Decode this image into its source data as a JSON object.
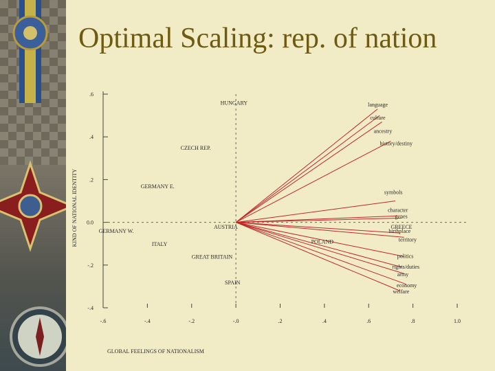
{
  "slide": {
    "title": "Optimal Scaling: rep. of nation"
  },
  "decor": {
    "left_strip": [
      "medal-ribbon-icon",
      "cross-medal-icon",
      "compass-icon"
    ]
  },
  "chart_data": {
    "type": "scatter",
    "title": "",
    "xlabel": "GLOBAL FEELINGS OF NATIONALISM",
    "ylabel": "KIND OF NATIONAL IDENTITY",
    "xlim": [
      -0.6,
      1.0
    ],
    "ylim": [
      -0.4,
      0.6
    ],
    "x_ticks": [
      -0.6,
      -0.4,
      -0.2,
      0.0,
      0.2,
      0.4,
      0.6,
      0.8,
      1.0
    ],
    "x_tick_labels": [
      "-.6",
      "-.4",
      "-.2",
      "-.0",
      ".2",
      ".4",
      ".6",
      ".8",
      "1.0"
    ],
    "y_ticks": [
      -0.4,
      -0.2,
      0.0,
      0.2,
      0.4,
      0.6
    ],
    "y_tick_labels": [
      "-.4",
      "-.2",
      "0.0",
      ".2",
      ".4",
      ".6"
    ],
    "reference_lines": {
      "x": 0.0,
      "y": 0.0,
      "style": "dashed"
    },
    "vector_origin": {
      "x": 0.0,
      "y": 0.0
    },
    "points": [
      {
        "label": "HUNGARY",
        "x": -0.07,
        "y": 0.55
      },
      {
        "label": "CZECH REP.",
        "x": -0.25,
        "y": 0.34
      },
      {
        "label": "GERMANY E.",
        "x": -0.43,
        "y": 0.16
      },
      {
        "label": "GERMANY W.",
        "x": -0.62,
        "y": -0.05
      },
      {
        "label": "AUSTRIA",
        "x": -0.1,
        "y": -0.03
      },
      {
        "label": "ITALY",
        "x": -0.38,
        "y": -0.11
      },
      {
        "label": "POLAND",
        "x": 0.34,
        "y": -0.1
      },
      {
        "label": "GREAT BRITAIN",
        "x": -0.2,
        "y": -0.17
      },
      {
        "label": "SPAIN",
        "x": -0.05,
        "y": -0.29
      },
      {
        "label": "GREECE",
        "x": 0.7,
        "y": -0.03
      }
    ],
    "vectors": [
      {
        "label": "language",
        "x": 0.64,
        "y": 0.53
      },
      {
        "label": "culture",
        "x": 0.65,
        "y": 0.5
      },
      {
        "label": "ancestry",
        "x": 0.66,
        "y": 0.47
      },
      {
        "label": "history/destiny",
        "x": 0.7,
        "y": 0.38
      },
      {
        "label": "symbols",
        "x": 0.72,
        "y": 0.1
      },
      {
        "label": "character",
        "x": 0.73,
        "y": 0.03
      },
      {
        "label": "genes",
        "x": 0.75,
        "y": 0.02
      },
      {
        "label": "territory",
        "x": 0.76,
        "y": -0.07
      },
      {
        "label": "birthplace",
        "x": 0.74,
        "y": -0.05
      },
      {
        "label": "politics",
        "x": 0.76,
        "y": -0.16
      },
      {
        "label": "rights/duties",
        "x": 0.75,
        "y": -0.21
      },
      {
        "label": "army",
        "x": 0.76,
        "y": -0.24
      },
      {
        "label": "economy",
        "x": 0.77,
        "y": -0.29
      },
      {
        "label": "welfare",
        "x": 0.74,
        "y": -0.32
      }
    ],
    "grid": false,
    "legend": "none",
    "colors": {
      "vectors": "#c0282a",
      "text": "#2a2a2a",
      "axis": "#444444"
    }
  }
}
